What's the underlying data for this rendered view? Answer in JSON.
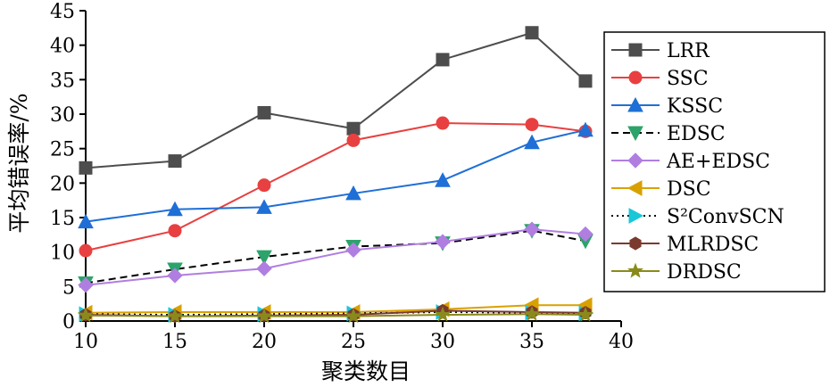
{
  "chart_data": {
    "type": "line",
    "xlabel": "聚类数目",
    "ylabel": "平均错误率/%",
    "xlim": [
      10,
      40
    ],
    "ylim": [
      0,
      45
    ],
    "xticks": [
      10,
      15,
      20,
      25,
      30,
      35,
      40
    ],
    "yticks": [
      0,
      5,
      10,
      15,
      20,
      25,
      30,
      35,
      40,
      45
    ],
    "grid": false,
    "legend_position": "right",
    "x": [
      10,
      15,
      20,
      25,
      30,
      35,
      38
    ],
    "series": [
      {
        "name": "LRR",
        "color": "#4d4d4d",
        "marker": "square",
        "dash": "solid",
        "values": [
          22.2,
          23.2,
          30.2,
          27.9,
          37.9,
          41.8,
          34.8
        ]
      },
      {
        "name": "SSC",
        "color": "#e84040",
        "marker": "circle",
        "dash": "solid",
        "values": [
          10.2,
          13.1,
          19.7,
          26.2,
          28.7,
          28.5,
          27.5
        ]
      },
      {
        "name": "KSSC",
        "color": "#1f6fd6",
        "marker": "triangle-up",
        "dash": "solid",
        "values": [
          14.4,
          16.2,
          16.5,
          18.5,
          20.4,
          25.9,
          27.7
        ]
      },
      {
        "name": "EDSC",
        "color": "#2ca36a",
        "marker": "triangle-down",
        "dash": "dashed",
        "values": [
          5.5,
          7.5,
          9.3,
          10.8,
          11.3,
          13.1,
          11.6
        ]
      },
      {
        "name": "AE+EDSC",
        "color": "#b07ee0",
        "marker": "diamond",
        "dash": "solid",
        "values": [
          5.2,
          6.6,
          7.6,
          10.3,
          11.5,
          13.3,
          12.6
        ]
      },
      {
        "name": "DSC",
        "color": "#d9a100",
        "marker": "triangle-left",
        "dash": "solid",
        "values": [
          1.2,
          1.3,
          1.3,
          1.3,
          1.7,
          2.3,
          2.3
        ]
      },
      {
        "name": "S²ConvSCN",
        "color": "#18c8d8",
        "marker": "triangle-right",
        "dash": "dotted",
        "values": [
          1.0,
          0.9,
          1.0,
          1.1,
          1.3,
          1.2,
          1.1
        ]
      },
      {
        "name": "MLRDSC",
        "color": "#7a3a2e",
        "marker": "hexagon",
        "dash": "solid",
        "values": [
          0.9,
          0.7,
          0.8,
          0.9,
          1.5,
          1.3,
          1.2
        ]
      },
      {
        "name": "DRDSC",
        "color": "#8a8a1c",
        "marker": "star",
        "dash": "solid",
        "values": [
          0.8,
          0.7,
          0.7,
          0.7,
          0.9,
          1.0,
          0.9
        ]
      }
    ]
  }
}
